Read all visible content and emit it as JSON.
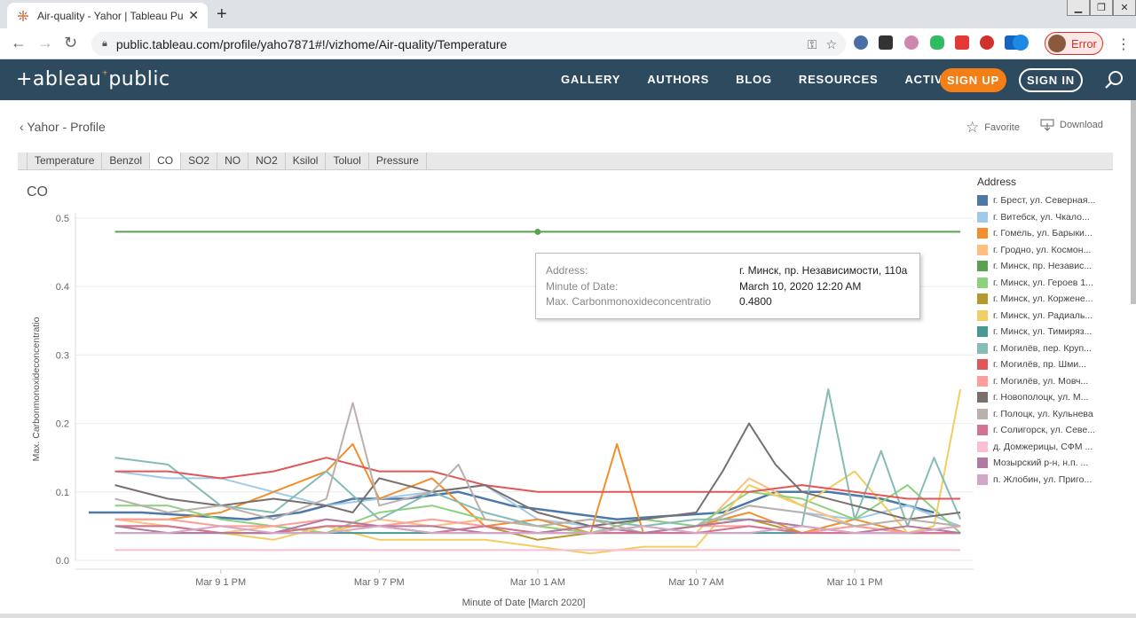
{
  "browser": {
    "tab_title": "Air-quality - Yahor | Tableau Public",
    "url": "public.tableau.com/profile/yaho7871#!/vizhome/Air-quality/Temperature",
    "error_label": "Error"
  },
  "header": {
    "logo": "+ab|eau⁺public",
    "nav": [
      "GALLERY",
      "AUTHORS",
      "BLOG",
      "RESOURCES",
      "ACTIVITY"
    ],
    "signup": "SIGN UP",
    "signin": "SIGN IN"
  },
  "subbar": {
    "back": "Yahor - Profile",
    "favorite": "Favorite",
    "download": "Download"
  },
  "viz_tabs": [
    "Temperature",
    "Benzol",
    "CO",
    "SO2",
    "NO",
    "NO2",
    "Ksilol",
    "Toluol",
    "Pressure"
  ],
  "active_tab": "CO",
  "tooltip": {
    "k1": "Address:",
    "v1": "г. Минск, пр. Независимости, 110а",
    "k2": "Minute of Date:",
    "v2": "March 10, 2020 12:20 AM",
    "k3": "Max. Carbonmonoxideconcentratio",
    "v3": "0.4800"
  },
  "legend": {
    "title": "Address",
    "items": [
      {
        "label": "г. Брест, ул. Северная...",
        "color": "#4e79a7"
      },
      {
        "label": "г. Витебск, ул. Чкало...",
        "color": "#a0cbe8"
      },
      {
        "label": "г. Гомель, ул. Барыки...",
        "color": "#f28e2b"
      },
      {
        "label": "г. Гродно, ул. Космон...",
        "color": "#ffbe7d"
      },
      {
        "label": "г. Минск, пр. Независ...",
        "color": "#59a14f"
      },
      {
        "label": "г. Минск, ул. Героев 1...",
        "color": "#8cd17d"
      },
      {
        "label": "г. Минск, ул. Коржене...",
        "color": "#b6992d"
      },
      {
        "label": "г. Минск, ул. Радиаль...",
        "color": "#f1ce63"
      },
      {
        "label": "г. Минск, ул. Тимиряз...",
        "color": "#499894"
      },
      {
        "label": "г. Могилёв, пер. Круп...",
        "color": "#86bcb6"
      },
      {
        "label": "г. Могилёв, пр. Шми...",
        "color": "#e15759"
      },
      {
        "label": "г. Могилёв, ул. Мовч...",
        "color": "#ff9d9a"
      },
      {
        "label": "г. Новополоцк, ул. М...",
        "color": "#79706e"
      },
      {
        "label": "г. Полоцк, ул. Кульнева",
        "color": "#bab0ac"
      },
      {
        "label": "г. Солигорск, ул. Севе...",
        "color": "#d37295"
      },
      {
        "label": "д. Домжерицы, СФМ ...",
        "color": "#fabfd2"
      },
      {
        "label": "Мозырский р-н, н.п. ...",
        "color": "#b07aa1"
      },
      {
        "label": "п. Жлобин, ул. Приго...",
        "color": "#d4a6c8"
      }
    ]
  },
  "chart_data": {
    "type": "line",
    "title": "CO",
    "xlabel": "Minute of Date [March 2020]",
    "ylabel": "Max. Carbonmonoxideconcentratio",
    "ylim": [
      0,
      0.5
    ],
    "yticks": [
      0.0,
      0.1,
      0.2,
      0.3,
      0.4,
      0.5
    ],
    "ytick_labels": [
      "0.0",
      "0.1",
      "0.2",
      "0.3",
      "0.4",
      "0.5"
    ],
    "x_ticks": [
      "Mar 9 1 PM",
      "Mar 9 7 PM",
      "Mar 10 1 AM",
      "Mar 10 7 AM",
      "Mar 10 1 PM"
    ],
    "x_unit": "hours since Mar 9 12 AM",
    "xlim": [
      7.5,
      41.5
    ],
    "grid": true,
    "legend": "right",
    "series": [
      {
        "name": "г. Брест, ул. Северная...",
        "x": [
          8,
          10,
          12,
          14,
          16,
          18,
          20,
          22,
          24,
          26,
          28,
          30,
          32,
          34,
          36,
          38,
          40
        ],
        "values": [
          0.07,
          0.07,
          0.065,
          0.06,
          0.07,
          0.09,
          0.09,
          0.1,
          0.08,
          0.07,
          0.06,
          0.065,
          0.07,
          0.1,
          0.1,
          0.09,
          0.07
        ]
      },
      {
        "name": "г. Витебск, ул. Чкало...",
        "x": [
          9,
          11,
          13,
          15,
          17,
          19,
          21,
          23,
          25,
          27,
          29,
          31,
          33,
          35,
          37,
          39,
          41
        ],
        "values": [
          0.13,
          0.12,
          0.12,
          0.1,
          0.08,
          0.09,
          0.1,
          0.11,
          0.06,
          0.05,
          0.06,
          0.05,
          0.08,
          0.07,
          0.06,
          0.08,
          0.05
        ]
      },
      {
        "name": "г. Гомель, ул. Барыки...",
        "x": [
          9,
          11,
          13,
          15,
          17,
          18,
          19,
          21,
          23,
          25,
          27,
          28,
          29,
          31,
          33,
          35,
          37,
          39,
          41
        ],
        "values": [
          0.06,
          0.06,
          0.07,
          0.1,
          0.13,
          0.17,
          0.09,
          0.12,
          0.05,
          0.06,
          0.04,
          0.17,
          0.04,
          0.05,
          0.07,
          0.04,
          0.06,
          0.04,
          0.05
        ]
      },
      {
        "name": "г. Гродно, ул. Космон...",
        "x": [
          9,
          11,
          13,
          15,
          17,
          19,
          21,
          23,
          25,
          27,
          29,
          31,
          33,
          35,
          37,
          39,
          41
        ],
        "values": [
          0.06,
          0.05,
          0.04,
          0.05,
          0.04,
          0.06,
          0.05,
          0.06,
          0.05,
          0.04,
          0.05,
          0.04,
          0.12,
          0.08,
          0.05,
          0.06,
          0.05
        ]
      },
      {
        "name": "г. Минск, пр. Независ...",
        "x": [
          9,
          41
        ],
        "values": [
          0.48,
          0.48
        ]
      },
      {
        "name": "г. Минск, ул. Героев 1...",
        "x": [
          9,
          11,
          13,
          15,
          17,
          19,
          21,
          23,
          25,
          27,
          29,
          31,
          33,
          35,
          37,
          39,
          41
        ],
        "values": [
          0.08,
          0.08,
          0.06,
          0.05,
          0.04,
          0.07,
          0.08,
          0.06,
          0.05,
          0.04,
          0.06,
          0.05,
          0.1,
          0.09,
          0.06,
          0.11,
          0.04
        ]
      },
      {
        "name": "г. Минск, ул. Коржене...",
        "x": [
          9,
          11,
          13,
          15,
          17,
          19,
          21,
          23,
          25,
          27,
          29,
          31,
          33,
          35,
          37,
          39,
          41
        ],
        "values": [
          0.05,
          0.05,
          0.04,
          0.04,
          0.05,
          0.05,
          0.04,
          0.05,
          0.03,
          0.04,
          0.04,
          0.05,
          0.06,
          0.04,
          0.05,
          0.04,
          0.04
        ]
      },
      {
        "name": "г. Минск, ул. Радиаль...",
        "x": [
          9,
          11,
          13,
          15,
          17,
          19,
          21,
          23,
          25,
          27,
          29,
          31,
          33,
          35,
          37,
          39,
          40,
          41
        ],
        "values": [
          0.05,
          0.05,
          0.04,
          0.03,
          0.05,
          0.03,
          0.03,
          0.03,
          0.02,
          0.01,
          0.02,
          0.02,
          0.11,
          0.08,
          0.13,
          0.04,
          0.05,
          0.25
        ]
      },
      {
        "name": "г. Минск, ул. Тимиряз...",
        "x": [
          9,
          41
        ],
        "values": [
          0.04,
          0.04
        ]
      },
      {
        "name": "г. Могилёв, пер. Круп...",
        "x": [
          9,
          11,
          13,
          15,
          17,
          19,
          21,
          23,
          25,
          27,
          29,
          31,
          33,
          35,
          36,
          37,
          38,
          39,
          40,
          41
        ],
        "values": [
          0.15,
          0.14,
          0.08,
          0.07,
          0.13,
          0.06,
          0.1,
          0.07,
          0.05,
          0.06,
          0.05,
          0.06,
          0.06,
          0.05,
          0.25,
          0.06,
          0.16,
          0.05,
          0.15,
          0.06
        ]
      },
      {
        "name": "г. Могилёв, пр. Шми...",
        "x": [
          9,
          11,
          13,
          15,
          17,
          19,
          21,
          23,
          25,
          27,
          29,
          31,
          33,
          35,
          37,
          39,
          41
        ],
        "values": [
          0.13,
          0.13,
          0.12,
          0.13,
          0.15,
          0.13,
          0.13,
          0.11,
          0.1,
          0.1,
          0.1,
          0.1,
          0.1,
          0.11,
          0.1,
          0.09,
          0.09
        ]
      },
      {
        "name": "г. Могилёв, ул. Мовч...",
        "x": [
          9,
          11,
          13,
          15,
          17,
          19,
          21,
          23,
          25,
          27,
          29,
          31,
          33,
          35,
          37,
          39,
          41
        ],
        "values": [
          0.06,
          0.06,
          0.05,
          0.05,
          0.06,
          0.05,
          0.06,
          0.05,
          0.04,
          0.05,
          0.04,
          0.05,
          0.05,
          0.04,
          0.05,
          0.04,
          0.04
        ]
      },
      {
        "name": "г. Новополоцк, ул. М...",
        "x": [
          9,
          11,
          13,
          15,
          17,
          18,
          19,
          21,
          23,
          25,
          27,
          29,
          31,
          32,
          33,
          34,
          35,
          37,
          39,
          41
        ],
        "values": [
          0.11,
          0.09,
          0.08,
          0.09,
          0.08,
          0.07,
          0.12,
          0.1,
          0.11,
          0.07,
          0.05,
          0.06,
          0.07,
          0.13,
          0.2,
          0.14,
          0.1,
          0.08,
          0.06,
          0.07
        ]
      },
      {
        "name": "г. Полоцк, ул. Кульнева",
        "x": [
          9,
          11,
          13,
          15,
          17,
          18,
          19,
          21,
          22,
          23,
          25,
          27,
          29,
          31,
          33,
          35,
          37,
          39,
          41
        ],
        "values": [
          0.09,
          0.07,
          0.08,
          0.06,
          0.09,
          0.23,
          0.08,
          0.1,
          0.14,
          0.06,
          0.05,
          0.06,
          0.04,
          0.05,
          0.08,
          0.07,
          0.05,
          0.06,
          0.05
        ]
      },
      {
        "name": "г. Солигорск, ул. Севе...",
        "x": [
          9,
          11,
          13,
          15,
          17,
          19,
          21,
          23,
          25,
          27,
          29,
          31,
          33,
          35,
          37,
          39,
          41
        ],
        "values": [
          0.05,
          0.05,
          0.04,
          0.04,
          0.05,
          0.05,
          0.04,
          0.05,
          0.04,
          0.04,
          0.04,
          0.04,
          0.05,
          0.04,
          0.04,
          0.04,
          0.04
        ]
      },
      {
        "name": "д. Домжерицы, СФМ ...",
        "x": [
          9,
          41
        ],
        "values": [
          0.015,
          0.015
        ]
      },
      {
        "name": "Мозырский р-н, н.п. ...",
        "x": [
          9,
          11,
          13,
          15,
          17,
          19,
          21,
          23,
          25,
          27,
          29,
          31,
          33,
          35,
          37,
          39,
          41
        ],
        "values": [
          0.05,
          0.04,
          0.04,
          0.04,
          0.06,
          0.05,
          0.05,
          0.04,
          0.04,
          0.05,
          0.04,
          0.05,
          0.06,
          0.05,
          0.04,
          0.05,
          0.04
        ]
      },
      {
        "name": "п. Жлобин, ул. Приго...",
        "x": [
          9,
          11,
          13,
          15,
          17,
          19,
          21,
          23,
          25,
          27,
          29,
          31,
          33,
          35,
          37,
          39,
          41
        ],
        "values": [
          0.04,
          0.04,
          0.05,
          0.04,
          0.04,
          0.05,
          0.04,
          0.04,
          0.04,
          0.04,
          0.05,
          0.04,
          0.04,
          0.05,
          0.04,
          0.04,
          0.05
        ]
      }
    ]
  }
}
